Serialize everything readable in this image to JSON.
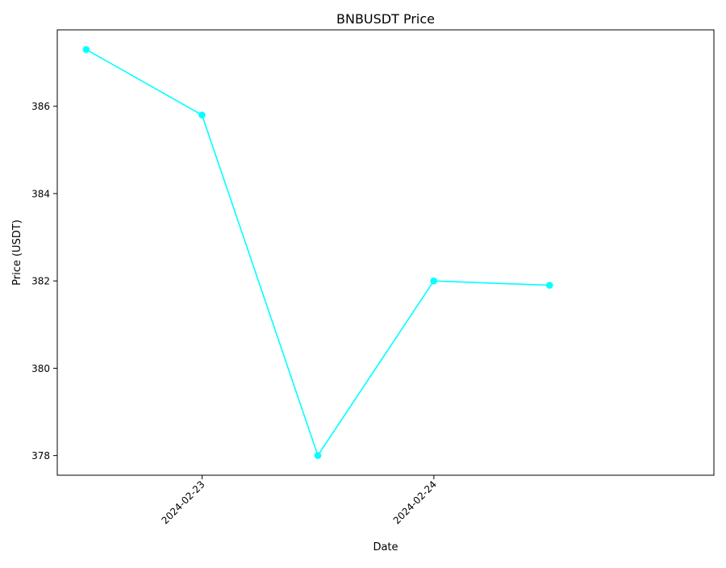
{
  "chart_data": {
    "type": "line",
    "title": "BNBUSDT Price",
    "xlabel": "Date",
    "ylabel": "Price (USDT)",
    "x_tick_labels": [
      "2024-02-23",
      "2024-02-24"
    ],
    "x_tick_values": [
      "2024-02-23 00:00",
      "2024-02-24 00:00"
    ],
    "y_tick_labels": [
      "378",
      "380",
      "382",
      "384",
      "386"
    ],
    "y_tick_values": [
      378,
      380,
      382,
      384,
      386
    ],
    "xlim": [
      "2024-02-22 09:00",
      "2024-02-25 05:00"
    ],
    "ylim": [
      377.55,
      387.75
    ],
    "grid": false,
    "legend": "none",
    "series": [
      {
        "color": "#00FFFF",
        "marker": "circle",
        "x": [
          "2024-02-22 12:00",
          "2024-02-22 23:59",
          "2024-02-23 11:59",
          "2024-02-23 23:59",
          "2024-02-24 11:59"
        ],
        "values": [
          387.3,
          385.8,
          378.0,
          382.0,
          381.9
        ]
      }
    ]
  }
}
